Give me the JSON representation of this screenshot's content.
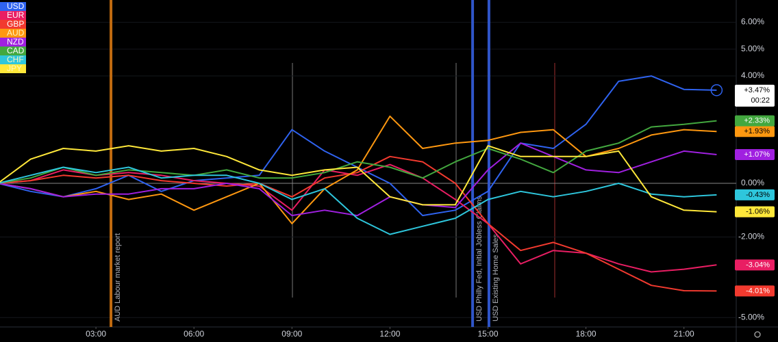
{
  "chart_data": {
    "type": "line",
    "x": [
      0,
      1,
      2,
      3,
      4,
      5,
      6,
      7,
      8,
      9,
      10,
      11,
      12,
      13,
      14,
      15,
      16,
      17,
      18,
      19,
      20,
      21,
      22
    ],
    "xlim": [
      0,
      22.6
    ],
    "xticks": [
      {
        "value": 3,
        "label": "03:00"
      },
      {
        "value": 6,
        "label": "06:00"
      },
      {
        "value": 9,
        "label": "09:00"
      },
      {
        "value": 12,
        "label": "12:00"
      },
      {
        "value": 15,
        "label": "15:00"
      },
      {
        "value": 18,
        "label": "18:00"
      },
      {
        "value": 21,
        "label": "21:00"
      }
    ],
    "ylim": [
      -5.35,
      6.83
    ],
    "yticks": [
      {
        "value": 6,
        "label": "6.00%"
      },
      {
        "value": 5,
        "label": "5.00%"
      },
      {
        "value": 4,
        "label": "4.00%"
      },
      {
        "value": 0,
        "label": "0.00%"
      },
      {
        "value": -2,
        "label": "-2.00%"
      },
      {
        "value": -5,
        "label": "-5.00%"
      }
    ],
    "countdown": "00:22",
    "series": [
      {
        "name": "USD",
        "color": "#2f63f0",
        "last_label": "+3.47%",
        "values": [
          0,
          -0.3,
          -0.5,
          -0.2,
          0.3,
          -0.3,
          0.1,
          0.2,
          0.3,
          2.0,
          1.2,
          0.6,
          0.0,
          -1.2,
          -1.0,
          -0.3,
          1.5,
          1.3,
          2.2,
          3.8,
          4.0,
          3.5,
          3.47
        ]
      },
      {
        "name": "EUR",
        "color": "#e91e63",
        "last_label": "-3.04%",
        "values": [
          0,
          0.1,
          0.5,
          0.3,
          0.4,
          0.3,
          0.1,
          0.0,
          -0.1,
          -1.0,
          0.5,
          0.3,
          0.7,
          0.2,
          -0.6,
          -1.5,
          -3.0,
          -2.5,
          -2.6,
          -3.0,
          -3.3,
          -3.2,
          -3.04
        ]
      },
      {
        "name": "GBP",
        "color": "#f23a2f",
        "last_label": "-4.01%",
        "values": [
          0,
          0.1,
          0.3,
          0.2,
          0.3,
          0.1,
          0.0,
          -0.1,
          0.0,
          -0.5,
          0.2,
          0.4,
          1.0,
          0.8,
          0.0,
          -1.5,
          -2.5,
          -2.2,
          -2.6,
          -3.2,
          -3.8,
          -4.0,
          -4.01
        ]
      },
      {
        "name": "AUD",
        "color": "#ff9810",
        "last_label": "+1.93%",
        "values": [
          0,
          -0.2,
          -0.5,
          -0.3,
          -0.6,
          -0.4,
          -1.0,
          -0.5,
          0.0,
          -1.5,
          -0.2,
          0.5,
          2.5,
          1.3,
          1.5,
          1.6,
          1.9,
          2.0,
          1.0,
          1.3,
          1.8,
          2.0,
          1.93
        ]
      },
      {
        "name": "NZD",
        "color": "#a020e0",
        "last_label": "+1.07%",
        "values": [
          0,
          -0.2,
          -0.5,
          -0.4,
          -0.4,
          -0.2,
          -0.2,
          0.0,
          -0.2,
          -1.2,
          -1.0,
          -1.2,
          -0.5,
          -0.8,
          -0.9,
          0.5,
          1.5,
          1.0,
          0.5,
          0.4,
          0.8,
          1.2,
          1.07
        ]
      },
      {
        "name": "CAD",
        "color": "#43a83f",
        "last_label": "+2.33%",
        "values": [
          0,
          0.2,
          0.6,
          0.3,
          0.5,
          0.4,
          0.3,
          0.5,
          0.2,
          0.2,
          0.4,
          0.8,
          0.6,
          0.2,
          0.8,
          1.3,
          0.9,
          0.4,
          1.2,
          1.5,
          2.1,
          2.2,
          2.33
        ]
      },
      {
        "name": "CHF",
        "color": "#2ec6dc",
        "last_label": "-0.43%",
        "values": [
          0,
          0.3,
          0.6,
          0.4,
          0.6,
          0.2,
          0.3,
          0.3,
          0.0,
          -0.6,
          -0.2,
          -1.3,
          -1.9,
          -1.6,
          -1.3,
          -0.6,
          -0.3,
          -0.5,
          -0.3,
          0.0,
          -0.4,
          -0.5,
          -0.43
        ]
      },
      {
        "name": "JPY",
        "color": "#ffe83a",
        "last_label": "-1.06%",
        "values": [
          0,
          0.9,
          1.3,
          1.2,
          1.4,
          1.2,
          1.3,
          1.0,
          0.5,
          0.3,
          0.5,
          0.6,
          -0.5,
          -0.8,
          -0.8,
          1.4,
          1.0,
          1.0,
          1.0,
          1.2,
          -0.5,
          -1.0,
          -1.06
        ]
      }
    ],
    "events": [
      {
        "x": 3.46,
        "label": "AUD Labour market report",
        "color": "#c06a10"
      },
      {
        "x": 14.53,
        "label": "USD Philly Fed, Initial Jobless Claims",
        "color": "#2f55c8"
      },
      {
        "x": 15.03,
        "label": "USD Existing Home Sales",
        "color": "#2f55c8"
      }
    ]
  }
}
